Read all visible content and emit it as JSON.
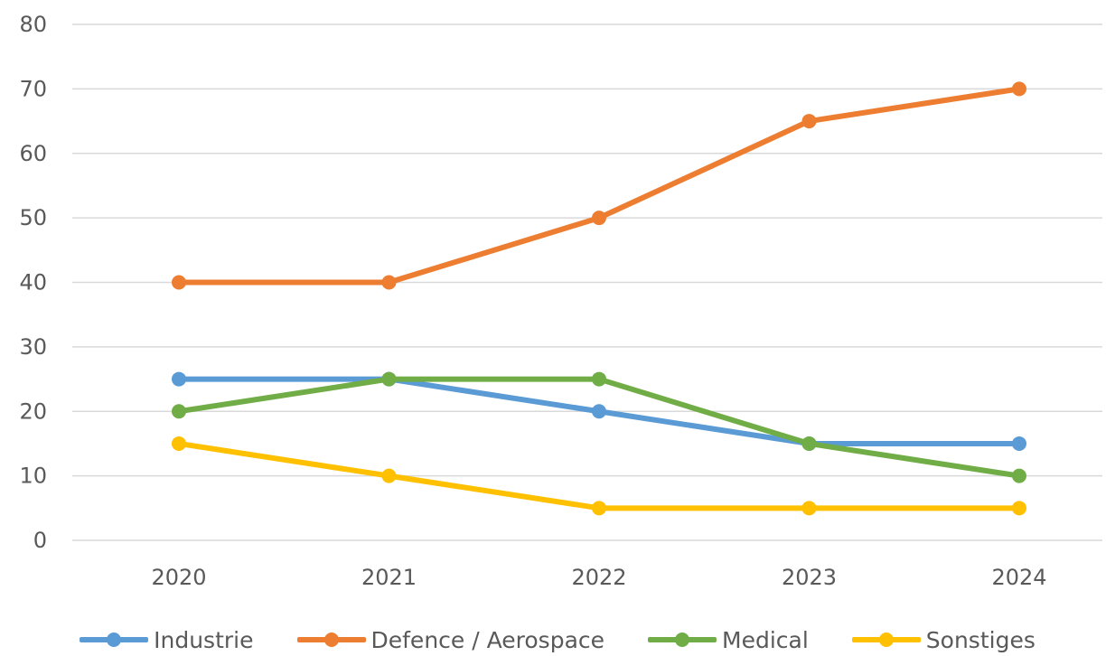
{
  "chart_data": {
    "type": "line",
    "categories": [
      "2020",
      "2021",
      "2022",
      "2023",
      "2024"
    ],
    "series": [
      {
        "name": "Industrie",
        "color": "#5B9BD5",
        "values": [
          25,
          25,
          20,
          15,
          15
        ]
      },
      {
        "name": "Defence / Aerospace",
        "color": "#ED7D31",
        "values": [
          40,
          40,
          50,
          65,
          70
        ]
      },
      {
        "name": "Medical",
        "color": "#70AD47",
        "values": [
          20,
          25,
          25,
          15,
          10
        ]
      },
      {
        "name": "Sonstiges",
        "color": "#FFC000",
        "values": [
          15,
          10,
          5,
          5,
          5
        ]
      }
    ],
    "yticks": [
      "0",
      "10",
      "20",
      "30",
      "40",
      "50",
      "60",
      "70",
      "80"
    ],
    "ylim": [
      0,
      80
    ],
    "grid": true,
    "legend_position": "bottom",
    "gridline_color": "#D9D9D9"
  }
}
